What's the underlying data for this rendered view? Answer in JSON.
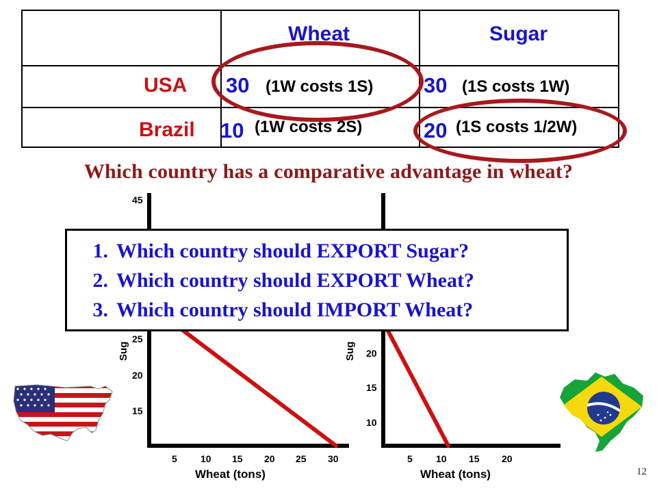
{
  "table": {
    "headers": [
      "Wheat",
      "Sugar"
    ],
    "rows": [
      {
        "country": "USA",
        "wheat_value": "30",
        "wheat_note": "(1W costs 1S)",
        "sugar_value": "30",
        "sugar_note": "(1S costs 1W)"
      },
      {
        "country": "Brazil",
        "wheat_value": "10",
        "wheat_note": "(1W costs 2S)",
        "sugar_value": "20",
        "sugar_note": "(1S costs 1/2W)"
      }
    ]
  },
  "question": "Which country has a comparative advantage in wheat?",
  "questions_box": {
    "items": [
      {
        "num": "1.",
        "text": "Which country should EXPORT Sugar?"
      },
      {
        "num": "2.",
        "text": "Which country should EXPORT Wheat?"
      },
      {
        "num": "3.",
        "text": "Which country should IMPORT Wheat?"
      }
    ]
  },
  "colors": {
    "header_blue": "#1a14cc",
    "country_red": "#cc1010",
    "ellipse_red": "#a8181c",
    "line_red": "#cc1111",
    "question_red": "#8b1a1a"
  },
  "chart_data": [
    {
      "type": "line",
      "xlabel": "Wheat (tons)",
      "ylabel": "Sug",
      "x_ticks": [
        "5",
        "10",
        "15",
        "20",
        "25",
        "30"
      ],
      "y_ticks_visible": [
        "45",
        "25",
        "20",
        "15"
      ],
      "xlim": [
        0,
        30
      ],
      "ylim": [
        10,
        45
      ],
      "series": [
        {
          "x": [
            0,
            30
          ],
          "y": [
            30,
            0
          ]
        }
      ]
    },
    {
      "type": "line",
      "xlabel": "Wheat (tons)",
      "ylabel": "Sug",
      "x_ticks": [
        "5",
        "10",
        "15",
        "20"
      ],
      "y_ticks_visible": [
        "20",
        "15",
        "10"
      ],
      "xlim": [
        0,
        20
      ],
      "ylim": [
        5,
        20
      ],
      "series": [
        {
          "x": [
            0,
            10
          ],
          "y": [
            20,
            0
          ]
        }
      ]
    }
  ],
  "page_number": "12",
  "icons": [
    "usa-map-flag-icon",
    "brazil-map-flag-icon"
  ]
}
